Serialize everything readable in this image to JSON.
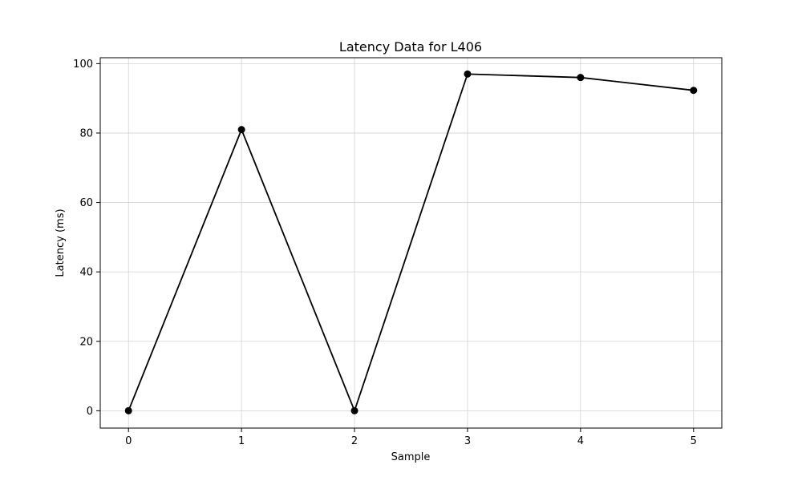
{
  "chart_data": {
    "type": "line",
    "title": "Latency Data for L406",
    "xlabel": "Sample",
    "ylabel": "Latency (ms)",
    "x": [
      0,
      1,
      2,
      3,
      4,
      5
    ],
    "xticks": [
      "0",
      "1",
      "2",
      "3",
      "4",
      "5"
    ],
    "yticks": [
      "0",
      "20",
      "40",
      "60",
      "80",
      "100"
    ],
    "xlim": [
      -0.25,
      5.25
    ],
    "ylim": [
      -5,
      101.7
    ],
    "grid": true,
    "series": [
      {
        "values": [
          0,
          81,
          0,
          97,
          96,
          92.3
        ],
        "color": "#000000",
        "marker": "circle"
      }
    ]
  }
}
